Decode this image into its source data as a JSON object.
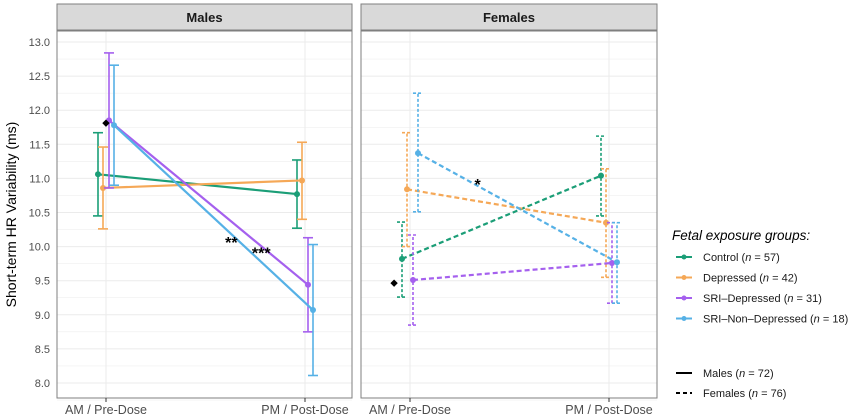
{
  "chart_data": {
    "type": "line",
    "ylabel": "Short-term HR Variability (ms)",
    "ylim": [
      7.75,
      13.2
    ],
    "yticks": [
      "8.0",
      "8.5",
      "9.0",
      "9.5",
      "10.0",
      "10.5",
      "11.0",
      "11.5",
      "12.0",
      "12.5",
      "13.0"
    ],
    "categories": [
      "AM / Pre-Dose",
      "PM / Post-Dose"
    ],
    "grid": true,
    "panels": [
      {
        "title": "Males",
        "linetype": "solid",
        "series": [
          {
            "name": "Control",
            "color": "#1b9e77",
            "values": [
              11.06,
              10.77
            ],
            "lower": [
              10.45,
              10.27
            ],
            "upper": [
              11.67,
              11.27
            ]
          },
          {
            "name": "Depressed",
            "color": "#f5a857",
            "values": [
              10.86,
              10.97
            ],
            "lower": [
              10.26,
              10.4
            ],
            "upper": [
              11.46,
              11.53
            ]
          },
          {
            "name": "SRI-Depressed",
            "color": "#a560ee",
            "values": [
              11.85,
              9.44
            ],
            "lower": [
              10.86,
              8.75
            ],
            "upper": [
              12.84,
              10.13
            ]
          },
          {
            "name": "SRI-Non-Depressed",
            "color": "#56b1e6",
            "values": [
              11.78,
              9.07
            ],
            "lower": [
              10.9,
              8.11
            ],
            "upper": [
              12.66,
              10.03
            ]
          }
        ],
        "annotations": [
          {
            "text": "◆",
            "x": 0,
            "y": 11.85
          },
          {
            "text": "**",
            "x": 0.63,
            "y": 10.05
          },
          {
            "text": "***",
            "x": 0.78,
            "y": 9.9
          }
        ]
      },
      {
        "title": "Females",
        "linetype": "dashed",
        "series": [
          {
            "name": "Control",
            "color": "#1b9e77",
            "values": [
              9.82,
              11.04
            ],
            "lower": [
              9.26,
              10.45
            ],
            "upper": [
              10.36,
              11.62
            ]
          },
          {
            "name": "Depressed",
            "color": "#f5a857",
            "values": [
              10.84,
              10.35
            ],
            "lower": [
              10.0,
              9.55
            ],
            "upper": [
              11.67,
              11.14
            ]
          },
          {
            "name": "SRI-Depressed",
            "color": "#a560ee",
            "values": [
              9.51,
              9.76
            ],
            "lower": [
              8.85,
              9.17
            ],
            "upper": [
              10.17,
              10.35
            ]
          },
          {
            "name": "SRI-Non-Depressed",
            "color": "#56b1e6",
            "values": [
              11.37,
              9.77
            ],
            "lower": [
              10.51,
              9.17
            ],
            "upper": [
              12.25,
              10.35
            ]
          }
        ],
        "annotations": [
          {
            "text": "◆",
            "x": -0.08,
            "y": 9.5
          },
          {
            "text": "*",
            "x": 0.34,
            "y": 10.9
          }
        ]
      }
    ],
    "legend": {
      "title": "Fetal exposure groups:",
      "placement": "right",
      "groups": [
        {
          "label": "Control (",
          "n": "n",
          "rest": " = 57)"
        },
        {
          "label": "Depressed (",
          "n": "n",
          "rest": " = 42)"
        },
        {
          "label": "SRI–Depressed (",
          "n": "n",
          "rest": " = 31)"
        },
        {
          "label": "SRI–Non–Depressed (",
          "n": "n",
          "rest": " = 18)"
        }
      ],
      "linetypes": [
        {
          "label": "Males (",
          "n": "n",
          "rest": " = 72)"
        },
        {
          "label": "Females (",
          "n": "n",
          "rest": " = 76)"
        }
      ]
    }
  }
}
